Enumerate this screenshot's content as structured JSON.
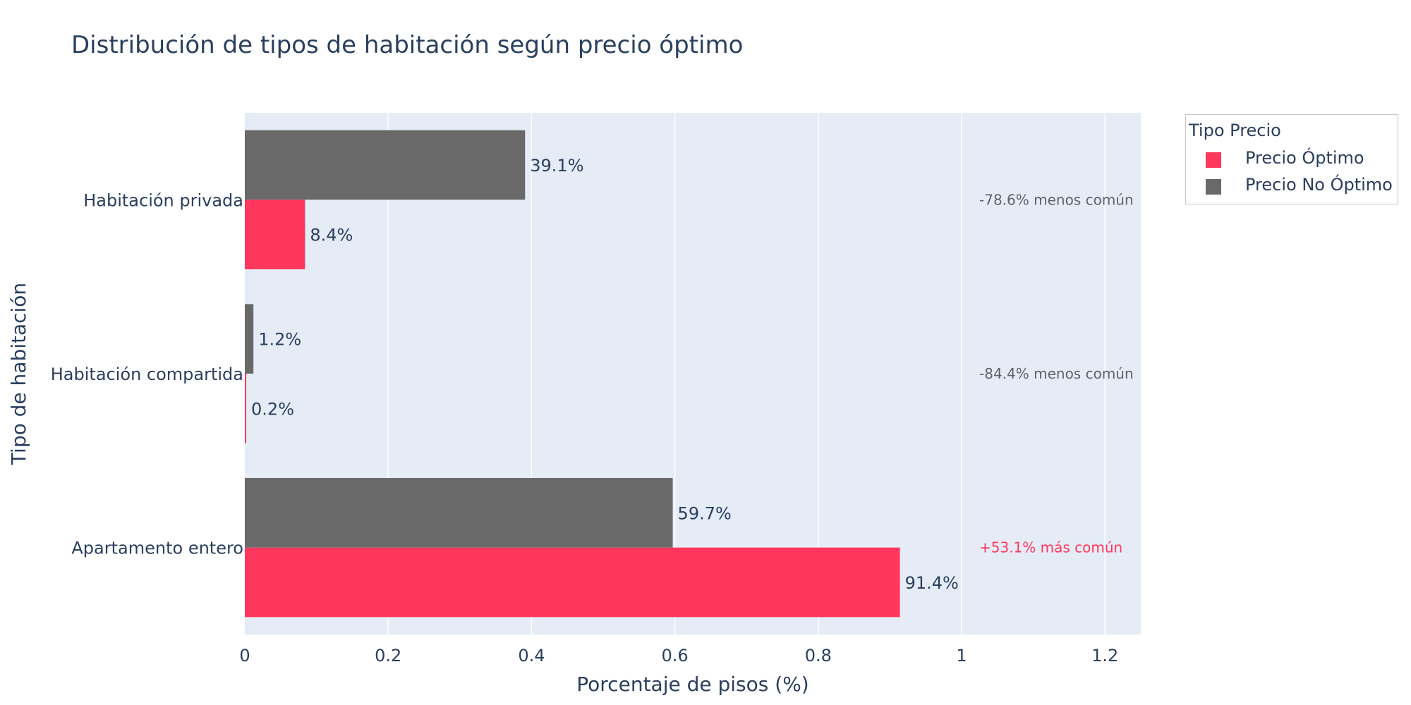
{
  "chart_data": {
    "type": "bar",
    "orientation": "horizontal",
    "title": "Distribución de tipos de habitación según precio óptimo",
    "xlabel": "Porcentaje de pisos (%)",
    "ylabel": "Tipo de habitación",
    "xlim": [
      0,
      1.25
    ],
    "xticks": [
      0,
      0.2,
      0.4,
      0.6,
      0.8,
      1,
      1.2
    ],
    "xtick_labels": [
      "0",
      "0.2",
      "0.4",
      "0.6",
      "0.8",
      "1",
      "1.2"
    ],
    "grid": true,
    "categories": [
      "Apartamento entero",
      "Habitación compartida",
      "Habitación privada"
    ],
    "series": [
      {
        "name": "Precio Óptimo",
        "color": "#ff375c",
        "values": [
          0.914,
          0.002,
          0.084
        ],
        "labels": [
          "91.4%",
          "0.2%",
          "8.4%"
        ]
      },
      {
        "name": "Precio No Óptimo",
        "color": "#696969",
        "values": [
          0.597,
          0.012,
          0.391
        ],
        "labels": [
          "59.7%",
          "1.2%",
          "39.1%"
        ]
      }
    ],
    "annotations": [
      {
        "category": "Habitación privada",
        "text": "-78.6% menos común",
        "color": "#5f6368"
      },
      {
        "category": "Habitación compartida",
        "text": "-84.4% menos común",
        "color": "#5f6368"
      },
      {
        "category": "Apartamento entero",
        "text": "+53.1% más común",
        "color": "#ff375c"
      }
    ],
    "legend": {
      "title": "Tipo Precio",
      "position": "top-right"
    },
    "colors": {
      "plot_bg": "#e5ecf6",
      "grid": "#ffffff",
      "text": "#2a3f5f"
    }
  }
}
